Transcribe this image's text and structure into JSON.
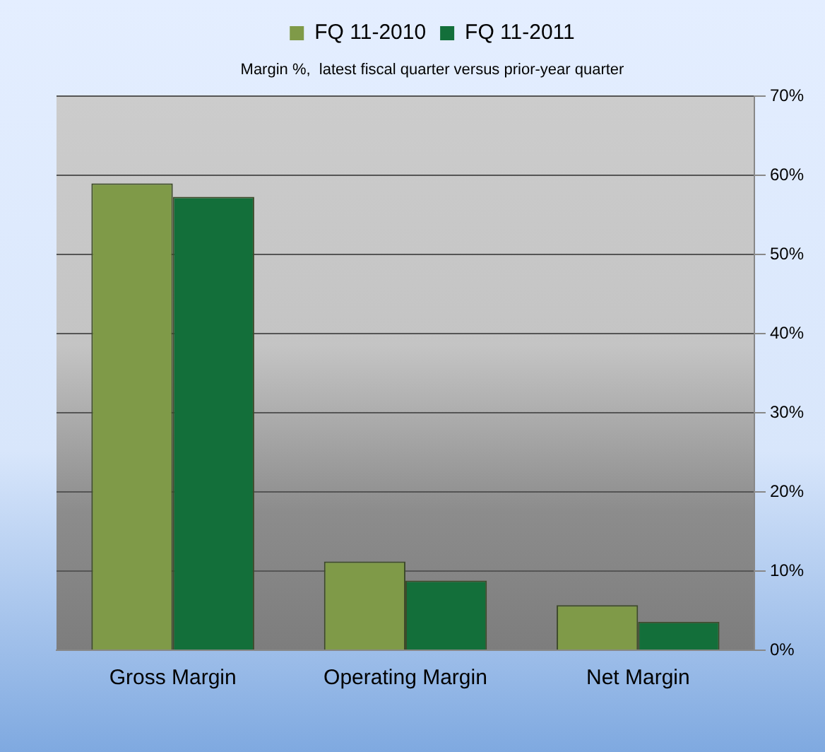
{
  "chart_data": {
    "type": "bar",
    "title": "Margin %,  latest fiscal quarter versus prior-year quarter",
    "categories": [
      "Gross Margin",
      "Operating Margin",
      "Net Margin"
    ],
    "series": [
      {
        "name": "FQ 11-2010",
        "color": "#7f9a48",
        "values": [
          59.0,
          11.2,
          5.7
        ]
      },
      {
        "name": "FQ 11-2011",
        "color": "#136f3a",
        "values": [
          57.3,
          8.8,
          3.6
        ]
      }
    ],
    "ylim": [
      0,
      70
    ],
    "yticks": [
      {
        "value": 0,
        "label": "0%"
      },
      {
        "value": 10,
        "label": "10%"
      },
      {
        "value": 20,
        "label": "20%"
      },
      {
        "value": 30,
        "label": "30%"
      },
      {
        "value": 40,
        "label": "40%"
      },
      {
        "value": 50,
        "label": "50%"
      },
      {
        "value": 60,
        "label": "60%"
      },
      {
        "value": 70,
        "label": "70%"
      }
    ],
    "grid": "y",
    "legend": "top"
  }
}
